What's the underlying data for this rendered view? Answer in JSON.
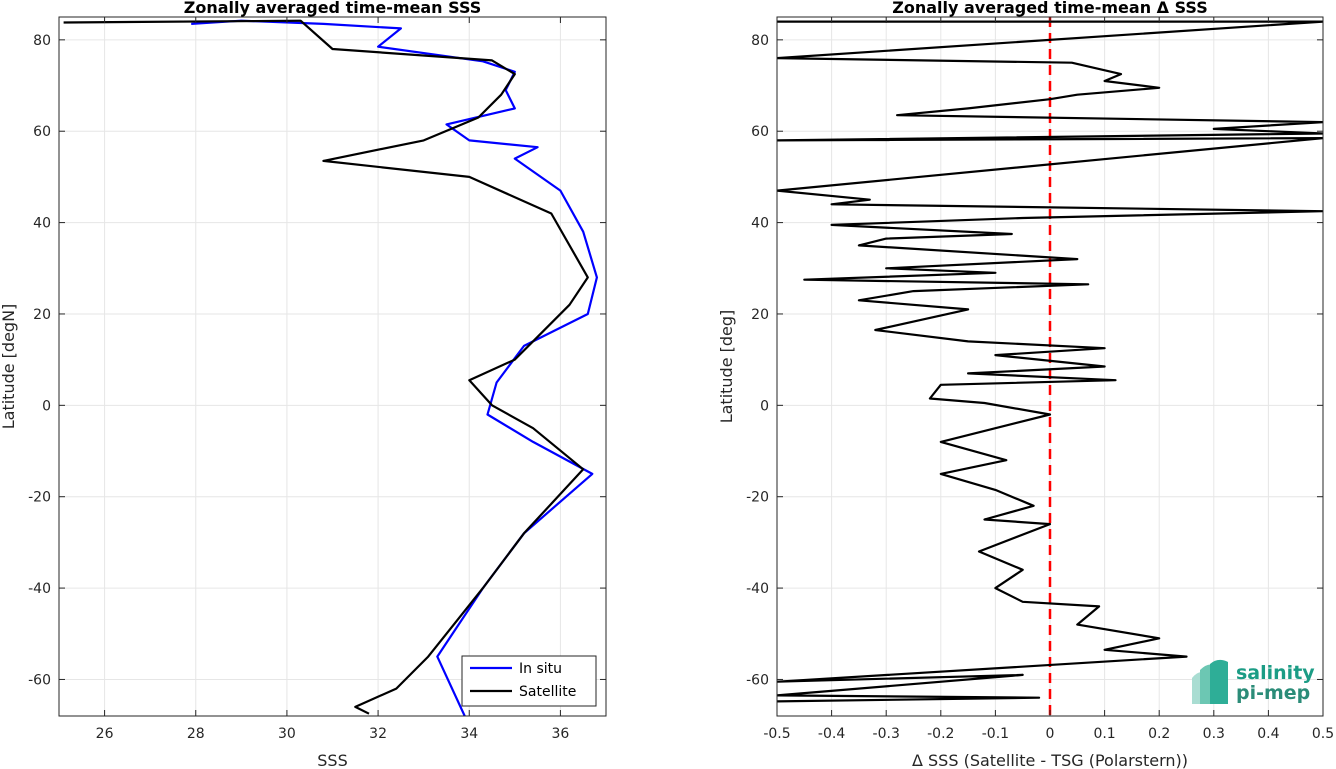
{
  "chart_data": [
    {
      "type": "line",
      "title": "Zonally averaged time-mean SSS",
      "xlabel": "SSS",
      "ylabel": "Latitude [degN]",
      "xlim": [
        25,
        37
      ],
      "ylim": [
        -68,
        85
      ],
      "xticks": [
        26,
        28,
        30,
        32,
        34,
        36
      ],
      "yticks": [
        -60,
        -40,
        -20,
        0,
        20,
        40,
        60,
        80
      ],
      "grid": true,
      "legend": "bottom-right",
      "series": [
        {
          "name": "In situ",
          "color": "#0000ff",
          "points": [
            [
              27.9,
              83.5
            ],
            [
              29.0,
              84.2
            ],
            [
              30.8,
              83.5
            ],
            [
              32.5,
              82.5
            ],
            [
              32.0,
              78.5
            ],
            [
              34.3,
              75.3
            ],
            [
              35.0,
              73.0
            ],
            [
              34.8,
              69.0
            ],
            [
              35.0,
              65.0
            ],
            [
              33.5,
              61.5
            ],
            [
              34.0,
              58.0
            ],
            [
              35.5,
              56.5
            ],
            [
              35.0,
              54.0
            ],
            [
              36.0,
              47.0
            ],
            [
              36.5,
              38.0
            ],
            [
              36.8,
              28.0
            ],
            [
              36.6,
              20.0
            ],
            [
              35.2,
              13.0
            ],
            [
              34.6,
              5.0
            ],
            [
              34.4,
              -2.0
            ],
            [
              35.4,
              -8.0
            ],
            [
              36.7,
              -15.0
            ],
            [
              35.2,
              -28.0
            ],
            [
              34.3,
              -40.0
            ],
            [
              33.3,
              -55.0
            ],
            [
              33.9,
              -68.0
            ]
          ]
        },
        {
          "name": "Satellite",
          "color": "#000000",
          "points": [
            [
              25.1,
              83.8
            ],
            [
              30.3,
              84.2
            ],
            [
              31.0,
              78.0
            ],
            [
              34.5,
              75.5
            ],
            [
              35.0,
              72.5
            ],
            [
              34.7,
              68.0
            ],
            [
              34.2,
              63.0
            ],
            [
              33.0,
              58.0
            ],
            [
              30.8,
              53.5
            ],
            [
              34.0,
              50.0
            ],
            [
              35.8,
              42.0
            ],
            [
              36.6,
              28.0
            ],
            [
              36.2,
              22.0
            ],
            [
              35.5,
              15.0
            ],
            [
              35.0,
              10.0
            ],
            [
              34.0,
              5.5
            ],
            [
              34.5,
              0.0
            ],
            [
              35.4,
              -5.0
            ],
            [
              36.5,
              -14.0
            ],
            [
              35.2,
              -28.0
            ],
            [
              34.3,
              -40.0
            ],
            [
              33.1,
              -55.0
            ],
            [
              32.4,
              -62.0
            ],
            [
              31.5,
              -66.0
            ],
            [
              31.8,
              -67.5
            ]
          ]
        }
      ]
    },
    {
      "type": "line",
      "title": "Zonally averaged time-mean Δ SSS",
      "xlabel": "Δ SSS (Satellite - TSG (Polarstern))",
      "ylabel": "Latitude [deg]",
      "xlim": [
        -0.5,
        0.5
      ],
      "ylim": [
        -68,
        85
      ],
      "xticks": [
        -0.5,
        -0.4,
        -0.3,
        -0.2,
        -0.1,
        0,
        0.1,
        0.2,
        0.3,
        0.4,
        0.5
      ],
      "yticks": [
        -60,
        -40,
        -20,
        0,
        20,
        40,
        60,
        80
      ],
      "grid": true,
      "reference_line": {
        "x": 0,
        "color": "#ff0000",
        "style": "dashed"
      },
      "series": [
        {
          "color": "#000000",
          "points": [
            [
              -0.5,
              84.0
            ],
            [
              0.5,
              84.0
            ],
            [
              -0.5,
              76.0
            ],
            [
              0.04,
              75.0
            ],
            [
              0.13,
              72.5
            ],
            [
              0.1,
              71.0
            ],
            [
              0.2,
              69.5
            ],
            [
              0.05,
              68.0
            ],
            [
              0.0,
              67.0
            ],
            [
              -0.15,
              65.0
            ],
            [
              -0.28,
              63.5
            ],
            [
              0.5,
              62.0
            ],
            [
              0.3,
              60.5
            ],
            [
              0.5,
              59.5
            ],
            [
              -0.5,
              58.0
            ],
            [
              0.5,
              58.5
            ],
            [
              -0.5,
              47.0
            ],
            [
              -0.33,
              45.0
            ],
            [
              -0.4,
              44.0
            ],
            [
              0.5,
              42.5
            ],
            [
              -0.05,
              41.0
            ],
            [
              -0.4,
              39.5
            ],
            [
              -0.07,
              37.5
            ],
            [
              -0.3,
              36.5
            ],
            [
              -0.35,
              35.0
            ],
            [
              0.05,
              32.0
            ],
            [
              -0.3,
              30.0
            ],
            [
              -0.1,
              29.0
            ],
            [
              -0.45,
              27.5
            ],
            [
              0.07,
              26.5
            ],
            [
              -0.25,
              25.0
            ],
            [
              -0.35,
              23.0
            ],
            [
              -0.15,
              21.0
            ],
            [
              -0.32,
              16.5
            ],
            [
              -0.15,
              14.0
            ],
            [
              0.1,
              12.5
            ],
            [
              -0.1,
              11.0
            ],
            [
              0.1,
              8.5
            ],
            [
              -0.15,
              7.0
            ],
            [
              0.12,
              5.5
            ],
            [
              -0.2,
              4.5
            ],
            [
              -0.22,
              1.5
            ],
            [
              -0.12,
              0.5
            ],
            [
              0.0,
              -2.0
            ],
            [
              -0.2,
              -8.0
            ],
            [
              -0.08,
              -12.0
            ],
            [
              -0.2,
              -15.0
            ],
            [
              -0.1,
              -18.5
            ],
            [
              -0.03,
              -22.0
            ],
            [
              -0.12,
              -25.0
            ],
            [
              0.0,
              -26.0
            ],
            [
              -0.13,
              -32.0
            ],
            [
              -0.05,
              -36.0
            ],
            [
              -0.1,
              -40.0
            ],
            [
              -0.05,
              -43.0
            ],
            [
              0.09,
              -44.0
            ],
            [
              0.05,
              -48.0
            ],
            [
              0.2,
              -51.0
            ],
            [
              0.1,
              -53.5
            ],
            [
              0.25,
              -55.0
            ],
            [
              -0.5,
              -60.5
            ],
            [
              -0.05,
              -59.0
            ],
            [
              -0.5,
              -63.5
            ],
            [
              -0.02,
              -64.0
            ],
            [
              -0.5,
              -64.8
            ]
          ]
        }
      ]
    }
  ],
  "logo": {
    "line1": "salinity",
    "line2": "pi-mep"
  }
}
